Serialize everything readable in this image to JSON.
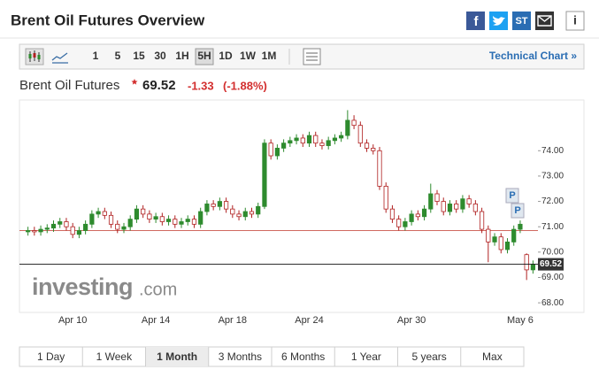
{
  "header": {
    "title": "Brent Oil Futures Overview",
    "icons": {
      "facebook": "f",
      "stocktwits": "ST",
      "info": "i"
    }
  },
  "toolbar": {
    "intervals": [
      "1",
      "5",
      "15",
      "30",
      "1H",
      "5H",
      "1D",
      "1W",
      "1M"
    ],
    "link": "Technical Chart »"
  },
  "quote": {
    "name": "Brent Oil Futures",
    "change": "-1.33",
    "change_pct": "(-1.88%)"
  },
  "watermark": {
    "brand": "investing",
    "suffix": ".com"
  },
  "ranges": [
    "1 Day",
    "1 Week",
    "1 Month",
    "3 Months",
    "6 Months",
    "1 Year",
    "5 years",
    "Max"
  ],
  "markers": [
    "P",
    "P"
  ],
  "chart_data": {
    "type": "candlestick",
    "categories": [
      null,
      null,
      null,
      null,
      null,
      null,
      null,
      "Apr 10",
      null,
      null,
      null,
      null,
      null,
      null,
      null,
      null,
      null,
      null,
      null,
      null,
      "Apr 14",
      null,
      null,
      null,
      null,
      null,
      null,
      null,
      null,
      null,
      null,
      null,
      "Apr 18",
      null,
      null,
      null,
      null,
      null,
      null,
      null,
      null,
      null,
      null,
      null,
      "Apr 24",
      null,
      null,
      null,
      null,
      null,
      null,
      null,
      null,
      null,
      null,
      null,
      null,
      null,
      null,
      null,
      "Apr 30",
      null,
      null,
      null,
      null,
      null,
      null,
      null,
      null,
      null,
      null,
      null,
      null,
      null,
      null,
      null,
      null,
      "May 6",
      null,
      null
    ],
    "open": [
      70.8,
      70.85,
      70.8,
      70.9,
      70.95,
      71.1,
      71.2,
      71.0,
      70.7,
      70.85,
      71.1,
      71.5,
      71.6,
      71.45,
      71.1,
      70.9,
      71.0,
      71.3,
      71.7,
      71.5,
      71.3,
      71.4,
      71.2,
      71.3,
      71.1,
      71.2,
      71.3,
      71.1,
      71.6,
      71.9,
      71.8,
      72.0,
      71.7,
      71.5,
      71.4,
      71.6,
      71.5,
      71.8,
      74.3,
      73.8,
      74.1,
      74.3,
      74.4,
      74.5,
      74.3,
      74.6,
      74.3,
      74.2,
      74.4,
      74.5,
      74.6,
      75.2,
      75.0,
      74.3,
      74.1,
      74.0,
      72.6,
      71.7,
      71.3,
      71.0,
      71.2,
      71.5,
      71.4,
      71.7,
      72.3,
      72.0,
      71.6,
      71.9,
      71.7,
      72.1,
      71.9,
      71.6,
      70.9,
      70.4,
      70.6,
      70.1,
      70.4,
      70.9,
      69.9,
      69.3
    ],
    "high": [
      71.0,
      71.0,
      71.05,
      71.1,
      71.25,
      71.35,
      71.35,
      71.15,
      71.0,
      71.25,
      71.65,
      71.75,
      71.75,
      71.6,
      71.25,
      71.15,
      71.45,
      71.85,
      71.85,
      71.65,
      71.55,
      71.55,
      71.45,
      71.45,
      71.35,
      71.45,
      71.45,
      71.75,
      72.05,
      72.05,
      72.15,
      72.15,
      71.85,
      71.65,
      71.75,
      71.75,
      71.95,
      74.45,
      74.45,
      74.25,
      74.45,
      74.55,
      74.65,
      74.65,
      74.75,
      74.75,
      74.45,
      74.55,
      74.65,
      74.75,
      75.6,
      75.4,
      75.15,
      74.45,
      74.25,
      74.15,
      72.75,
      71.85,
      71.45,
      71.35,
      71.65,
      71.65,
      71.85,
      72.7,
      72.45,
      72.15,
      72.05,
      72.05,
      72.25,
      72.25,
      72.05,
      71.75,
      71.05,
      70.75,
      70.75,
      70.55,
      71.05,
      71.25,
      69.95,
      69.67
    ],
    "low": [
      70.65,
      70.65,
      70.65,
      70.75,
      70.8,
      70.95,
      70.85,
      70.55,
      70.55,
      70.7,
      70.95,
      71.35,
      71.3,
      70.95,
      70.75,
      70.75,
      70.85,
      71.15,
      71.35,
      71.15,
      71.15,
      71.05,
      71.05,
      70.95,
      70.95,
      71.05,
      70.95,
      70.95,
      71.45,
      71.65,
      71.65,
      71.55,
      71.35,
      71.25,
      71.25,
      71.35,
      71.35,
      71.7,
      73.65,
      73.65,
      73.95,
      74.15,
      74.25,
      74.15,
      74.15,
      74.15,
      74.05,
      74.05,
      74.25,
      74.35,
      74.45,
      74.85,
      74.15,
      73.95,
      73.85,
      72.45,
      71.55,
      71.15,
      70.85,
      70.85,
      71.05,
      71.25,
      71.25,
      71.55,
      71.85,
      71.45,
      71.45,
      71.55,
      71.55,
      71.75,
      71.45,
      70.75,
      69.6,
      70.25,
      69.95,
      69.95,
      70.25,
      70.75,
      68.9,
      69.15
    ],
    "close": [
      70.85,
      70.8,
      70.9,
      70.95,
      71.1,
      71.2,
      71.0,
      70.7,
      70.85,
      71.1,
      71.5,
      71.6,
      71.45,
      71.1,
      70.9,
      71.0,
      71.3,
      71.7,
      71.5,
      71.3,
      71.4,
      71.2,
      71.3,
      71.1,
      71.2,
      71.3,
      71.1,
      71.6,
      71.9,
      71.8,
      72.0,
      71.7,
      71.5,
      71.4,
      71.6,
      71.5,
      71.8,
      74.3,
      73.8,
      74.1,
      74.3,
      74.4,
      74.5,
      74.3,
      74.6,
      74.3,
      74.2,
      74.4,
      74.5,
      74.6,
      75.2,
      75.0,
      74.3,
      74.1,
      74.0,
      72.6,
      71.7,
      71.3,
      71.0,
      71.2,
      71.5,
      71.4,
      71.7,
      72.3,
      72.0,
      71.6,
      71.9,
      71.7,
      72.1,
      71.9,
      71.6,
      70.9,
      70.4,
      70.6,
      70.1,
      70.4,
      70.9,
      71.1,
      69.3,
      69.52
    ],
    "colors": {
      "up": "#2e8b2e",
      "down": "#b02020"
    },
    "last_price": 69.52,
    "reference_line": {
      "value": 70.85,
      "color": "#c0392b"
    },
    "ylim": [
      67.9,
      76
    ],
    "yticks": [
      {
        "value": 68,
        "label": "68.00"
      },
      {
        "value": 69,
        "label": "69.00"
      },
      {
        "value": 70,
        "label": "70.00"
      },
      {
        "value": 71,
        "label": "71.00"
      },
      {
        "value": 72,
        "label": "72.00"
      },
      {
        "value": 73,
        "label": "73.00"
      },
      {
        "value": 74,
        "label": "74.00"
      }
    ]
  }
}
